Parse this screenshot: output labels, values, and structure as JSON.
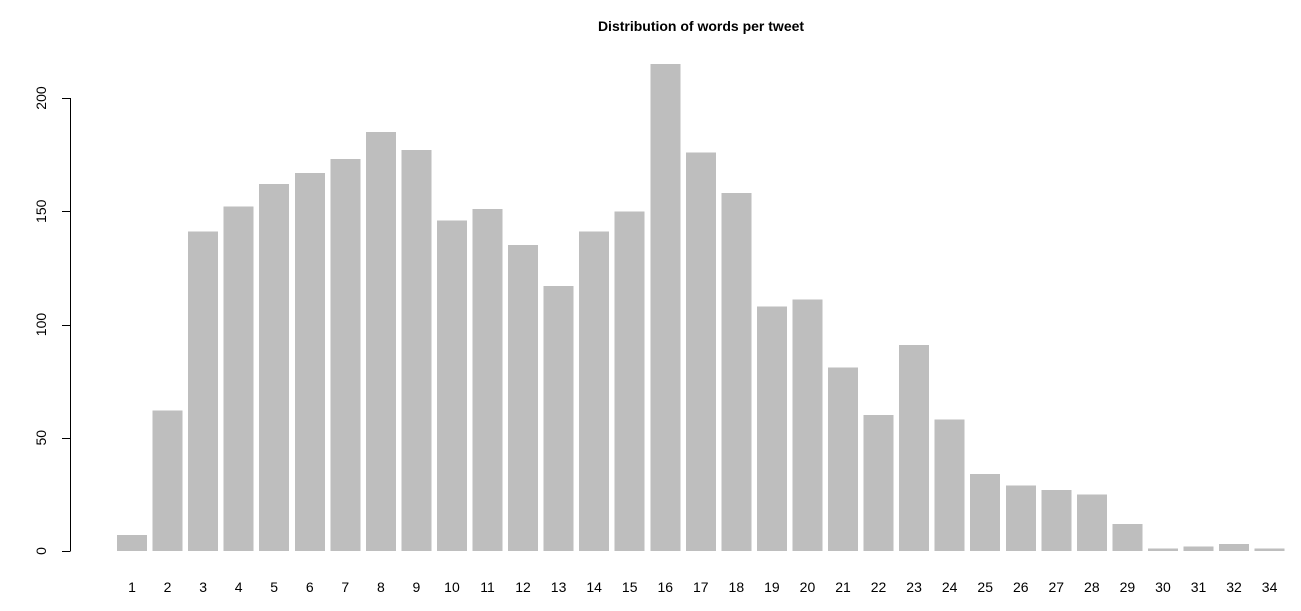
{
  "chart_data": {
    "type": "bar",
    "title": "Distribution of words per tweet",
    "xlabel": "",
    "ylabel": "",
    "categories": [
      "1",
      "2",
      "3",
      "4",
      "5",
      "6",
      "7",
      "8",
      "9",
      "10",
      "11",
      "12",
      "13",
      "14",
      "15",
      "16",
      "17",
      "18",
      "19",
      "20",
      "21",
      "22",
      "23",
      "24",
      "25",
      "26",
      "27",
      "28",
      "29",
      "30",
      "31",
      "32",
      "34"
    ],
    "values": [
      7,
      62,
      141,
      152,
      162,
      167,
      173,
      185,
      177,
      146,
      151,
      135,
      117,
      141,
      150,
      215,
      176,
      158,
      108,
      111,
      81,
      60,
      91,
      58,
      34,
      29,
      27,
      25,
      12,
      1,
      2,
      3,
      1
    ],
    "ylim": [
      0,
      220
    ],
    "yticks": [
      0,
      50,
      100,
      150,
      200
    ],
    "grid": false,
    "legend": "none",
    "bar_color": "#bebebe",
    "axis_color": "#000000"
  }
}
